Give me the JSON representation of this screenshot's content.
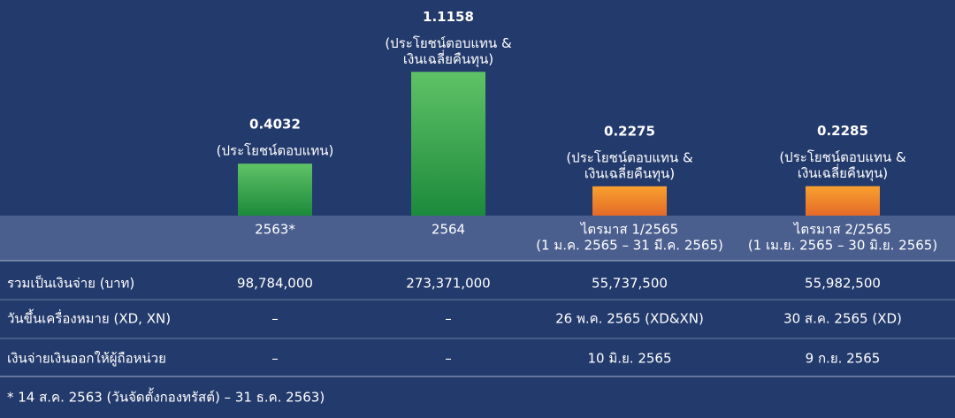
{
  "chart_data": {
    "type": "bar",
    "categories": [
      [
        "2563*"
      ],
      [
        "2564"
      ],
      [
        "ไตรมาส 1/2565",
        "(1 ม.ค. 2565 – 31 มี.ค. 2565)"
      ],
      [
        "ไตรมาส 2/2565",
        "(1 เม.ย. 2565 – 30 มิ.ย. 2565)"
      ]
    ],
    "values": [
      0.4032,
      1.1158,
      0.2275,
      0.2285
    ],
    "notes": [
      [
        "(ประโยชน์ตอบแทน)"
      ],
      [
        "(ประโยชน์ตอบแทน &",
        "เงินเฉลี่ยคืนทุน)"
      ],
      [
        "(ประโยชน์ตอบแทน &",
        "เงินเฉลี่ยคืนทุน)"
      ],
      [
        "(ประโยชน์ตอบแทน &",
        "เงินเฉลี่ยคืนทุน)"
      ]
    ],
    "colors": [
      [
        "#5fc266",
        "#1c8a3c"
      ],
      [
        "#5fc266",
        "#1c8a3c"
      ],
      [
        "#f8a12f",
        "#e46a28"
      ],
      [
        "#f8a12f",
        "#e46a28"
      ]
    ],
    "ylim": [
      0,
      1.2
    ]
  },
  "table": {
    "rows": [
      {
        "label": "รวมเป็นเงินจ่าย (บาท)",
        "cells": [
          "98,784,000",
          "273,371,000",
          "55,737,500",
          "55,982,500"
        ]
      },
      {
        "label": "วันขึ้นเครื่องหมาย (XD, XN)",
        "cells": [
          "–",
          "–",
          "26 พ.ค. 2565 (XD&XN)",
          "30 ส.ค. 2565 (XD)"
        ]
      },
      {
        "label": "เงินจ่ายเงินออกให้ผู้ถือหน่วย",
        "cells": [
          "–",
          "–",
          "10 มิ.ย. 2565",
          "9 ก.ย. 2565"
        ]
      }
    ]
  },
  "footnote": "* 14 ส.ค. 2563 (วันจัดตั้งกองทรัสต์) – 31 ธ.ค. 2563)"
}
